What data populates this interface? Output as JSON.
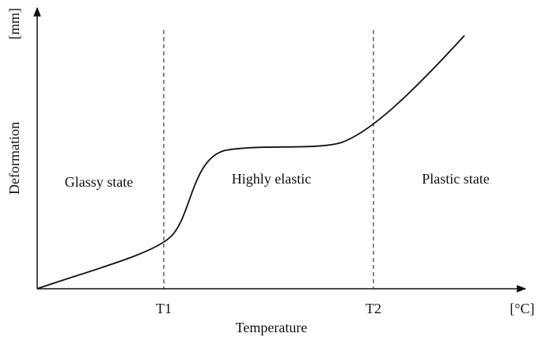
{
  "axes": {
    "y_unit": "[mm]",
    "y_label": "Deformation",
    "x_unit": "[°C]",
    "x_label": "Temperature"
  },
  "markers": [
    "T1",
    "T2"
  ],
  "regions": [
    "Glassy state",
    "Highly elastic",
    "Plastic state"
  ]
}
